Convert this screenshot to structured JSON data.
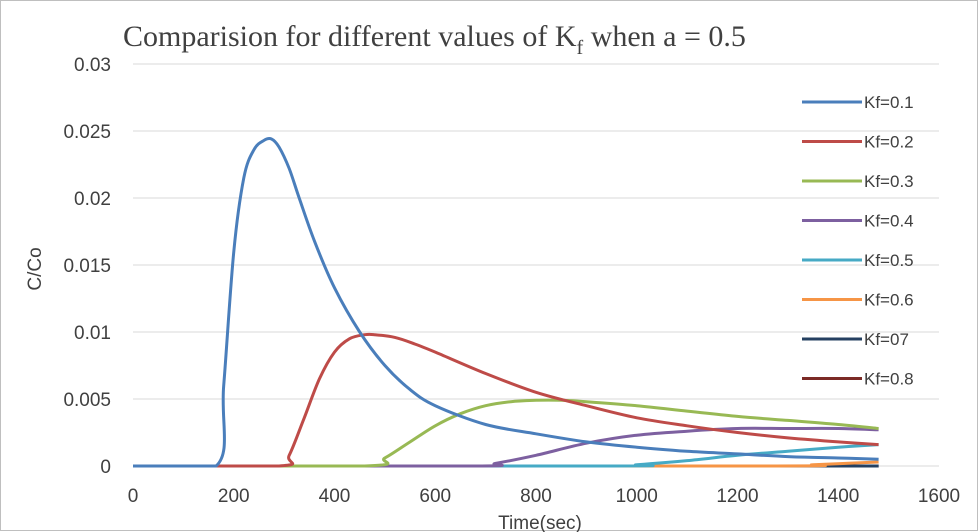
{
  "chart_data": {
    "type": "line",
    "title": "Comparision for different values of K",
    "title_subscript": "f",
    "title_suffix": " when a = 0.5",
    "xlabel": "Time(sec)",
    "ylabel": "C/Co",
    "xlim": [
      0,
      1600
    ],
    "ylim": [
      0,
      0.03
    ],
    "x_ticks": [
      "0",
      "200",
      "400",
      "600",
      "800",
      "1000",
      "1200",
      "1400",
      "1600"
    ],
    "y_ticks": [
      "0",
      "0.005",
      "0.01",
      "0.015",
      "0.02",
      "0.025",
      "0.03"
    ],
    "legend_position": "right",
    "grid": "horizontal",
    "series": [
      {
        "name": "Kf=0.1",
        "color": "#4a7ebb",
        "x": [
          0,
          165,
          180,
          200,
          220,
          240,
          260,
          275,
          290,
          310,
          330,
          360,
          400,
          450,
          500,
          550,
          600,
          700,
          800,
          900,
          1000,
          1100,
          1200,
          1300,
          1400,
          1480
        ],
        "y": [
          0,
          0,
          0.006,
          0.016,
          0.0215,
          0.0236,
          0.0243,
          0.0244,
          0.0238,
          0.0222,
          0.02,
          0.0168,
          0.0133,
          0.01,
          0.0075,
          0.0057,
          0.0045,
          0.0031,
          0.0024,
          0.0018,
          0.0014,
          0.0011,
          0.0009,
          0.0007,
          0.0006,
          0.0005
        ]
      },
      {
        "name": "Kf=0.2",
        "color": "#be4b48",
        "x": [
          0,
          290,
          310,
          340,
          370,
          400,
          430,
          460,
          480,
          520,
          560,
          600,
          700,
          800,
          900,
          1000,
          1100,
          1200,
          1300,
          1400,
          1480
        ],
        "y": [
          0,
          0,
          0.0008,
          0.0036,
          0.0065,
          0.0085,
          0.0095,
          0.0098,
          0.0098,
          0.0096,
          0.0091,
          0.0085,
          0.0069,
          0.0055,
          0.0045,
          0.0036,
          0.003,
          0.0025,
          0.0021,
          0.0018,
          0.0016
        ]
      },
      {
        "name": "Kf=0.3",
        "color": "#98b954",
        "x": [
          0,
          460,
          500,
          550,
          600,
          650,
          700,
          750,
          800,
          850,
          900,
          1000,
          1100,
          1200,
          1300,
          1400,
          1480
        ],
        "y": [
          0,
          0,
          0.0006,
          0.0018,
          0.003,
          0.0039,
          0.0045,
          0.0048,
          0.0049,
          0.0049,
          0.0048,
          0.0045,
          0.0041,
          0.0037,
          0.0034,
          0.0031,
          0.0028
        ]
      },
      {
        "name": "Kf=0.4",
        "color": "#7d60a0",
        "x": [
          0,
          670,
          720,
          800,
          900,
          1000,
          1100,
          1200,
          1300,
          1400,
          1480
        ],
        "y": [
          0,
          0,
          0.0002,
          0.0008,
          0.0017,
          0.0023,
          0.0026,
          0.0028,
          0.0028,
          0.0028,
          0.0027
        ]
      },
      {
        "name": "Kf=0.5",
        "color": "#46aac5",
        "x": [
          0,
          950,
          1000,
          1100,
          1200,
          1300,
          1400,
          1480
        ],
        "y": [
          0,
          0,
          0.0001,
          0.0004,
          0.0008,
          0.0011,
          0.0014,
          0.0016
        ]
      },
      {
        "name": "Kf=0.6",
        "color": "#f69546",
        "x": [
          0,
          1250,
          1350,
          1420,
          1480
        ],
        "y": [
          0,
          0,
          0.0001,
          0.0002,
          0.0003
        ]
      },
      {
        "name": "Kf=07",
        "color": "#254061",
        "x": [
          0,
          1480
        ],
        "y": [
          0,
          0
        ]
      },
      {
        "name": "Kf=0.8",
        "color": "#7b2a26",
        "x": [
          0,
          1480
        ],
        "y": [
          0,
          0
        ]
      }
    ]
  }
}
